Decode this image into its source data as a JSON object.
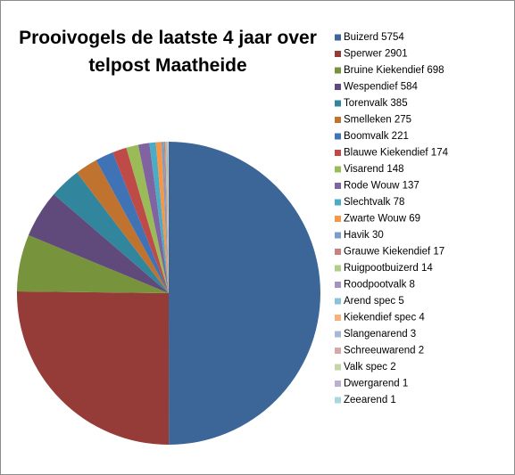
{
  "chart_data": {
    "type": "pie",
    "title": "Prooivogels de laatste 4 jaar over telpost Maatheide",
    "categories": [
      "Buizerd 5754",
      "Sperwer 2901",
      "Bruine Kiekendief 698",
      "Wespendief 584",
      "Torenvalk 385",
      "Smelleken 275",
      "Boomvalk 221",
      "Blauwe Kiekendief 174",
      "Visarend 148",
      "Rode Wouw 137",
      "Slechtvalk 78",
      "Zwarte Wouw 69",
      "Havik 30",
      "Grauwe Kiekendief 17",
      "Ruigpootbuizerd 14",
      "Roodpootvalk 8",
      "Arend spec 5",
      "Kiekendief spec 4",
      "Slangenarend 3",
      "Schreeuwarend 2",
      "Valk spec 2",
      "Dwergarend 1",
      "Zeearend 1"
    ],
    "values": [
      5754,
      2901,
      698,
      584,
      385,
      275,
      221,
      174,
      148,
      137,
      78,
      69,
      30,
      17,
      14,
      8,
      5,
      4,
      3,
      2,
      2,
      1,
      1
    ],
    "colors": [
      "#3D6698",
      "#953C39",
      "#77933C",
      "#5F4A7B",
      "#31859C",
      "#C0732F",
      "#3F73B5",
      "#BE4B48",
      "#9BBB59",
      "#8064A2",
      "#4BACC6",
      "#F79646",
      "#7D9CC8",
      "#C88080",
      "#B3CC88",
      "#A593BE",
      "#87C4D8",
      "#F9B07A",
      "#A7B8D6",
      "#D8A8A7",
      "#C4D6A9",
      "#BBB0CF",
      "#A8D6E3"
    ],
    "legend": "right"
  }
}
